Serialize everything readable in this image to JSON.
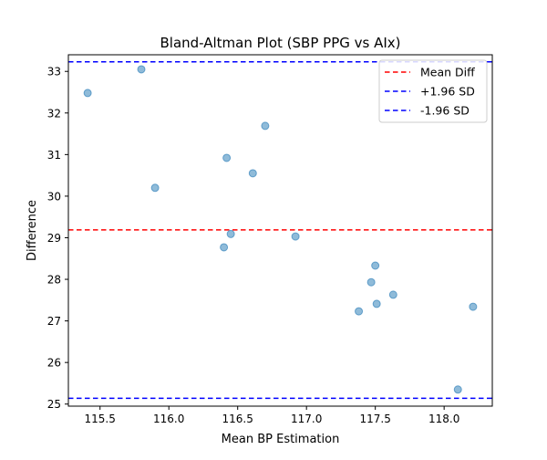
{
  "chart_data": {
    "type": "scatter",
    "title": "Bland-Altman Plot (SBP PPG vs AIx)",
    "xlabel": "Mean BP Estimation",
    "ylabel": "Difference",
    "xlim": [
      115.27,
      118.35
    ],
    "ylim": [
      24.95,
      33.4
    ],
    "xticks": [
      115.5,
      116.0,
      116.5,
      117.0,
      117.5,
      118.0
    ],
    "xtick_labels": [
      "115.5",
      "116.0",
      "116.5",
      "117.0",
      "117.5",
      "118.0"
    ],
    "yticks": [
      25,
      26,
      27,
      28,
      29,
      30,
      31,
      32,
      33
    ],
    "ytick_labels": [
      "25",
      "26",
      "27",
      "28",
      "29",
      "30",
      "31",
      "32",
      "33"
    ],
    "grid": false,
    "legend_position": "top-right",
    "points": {
      "color": "#1f77b4",
      "x": [
        115.41,
        115.8,
        115.9,
        116.4,
        116.42,
        116.45,
        116.61,
        116.7,
        116.92,
        117.38,
        117.47,
        117.5,
        117.51,
        117.63,
        118.1,
        118.21
      ],
      "y": [
        32.48,
        33.05,
        30.2,
        28.77,
        30.92,
        29.09,
        30.55,
        31.69,
        29.03,
        27.23,
        27.93,
        28.33,
        27.41,
        27.63,
        25.35,
        27.34
      ]
    },
    "reference_lines": [
      {
        "name": "Mean Diff",
        "y": 29.19,
        "color": "#ff0000"
      },
      {
        "name": "+1.96 SD",
        "y": 33.23,
        "color": "#0000ff"
      },
      {
        "name": "-1.96 SD",
        "y": 25.14,
        "color": "#0000ff"
      }
    ]
  }
}
